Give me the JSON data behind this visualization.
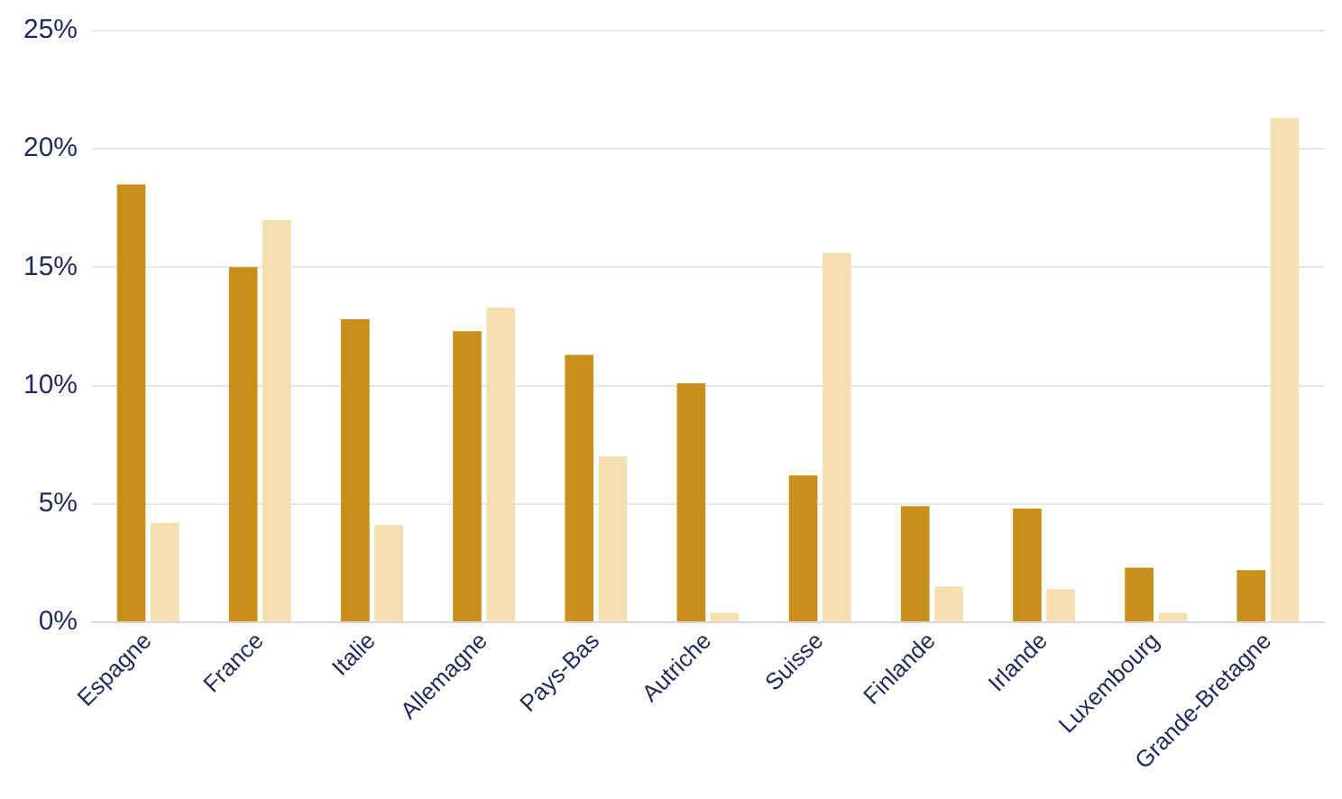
{
  "chart_data": {
    "type": "bar",
    "categories": [
      "Espagne",
      "France",
      "Italie",
      "Allemagne",
      "Pays-Bas",
      "Autriche",
      "Suisse",
      "Finlande",
      "Irlande",
      "Luxembourg",
      "Grande-Bretagne"
    ],
    "series": [
      {
        "color": "#c8901a",
        "values": [
          18.5,
          15.0,
          12.8,
          12.3,
          11.3,
          10.1,
          6.2,
          4.9,
          4.8,
          2.3,
          2.2
        ]
      },
      {
        "color": "#f5deb0",
        "values": [
          4.2,
          17.0,
          4.1,
          13.3,
          7.0,
          0.4,
          15.6,
          1.5,
          1.4,
          0.4,
          21.3
        ]
      }
    ],
    "ylim": [
      0,
      25
    ],
    "yticks": [
      {
        "value": 0,
        "label": "0%"
      },
      {
        "value": 5,
        "label": "5%"
      },
      {
        "value": 10,
        "label": "10%"
      },
      {
        "value": 15,
        "label": "15%"
      },
      {
        "value": 20,
        "label": "20%"
      },
      {
        "value": 25,
        "label": "25%"
      }
    ],
    "grid": "y",
    "legend": false
  }
}
